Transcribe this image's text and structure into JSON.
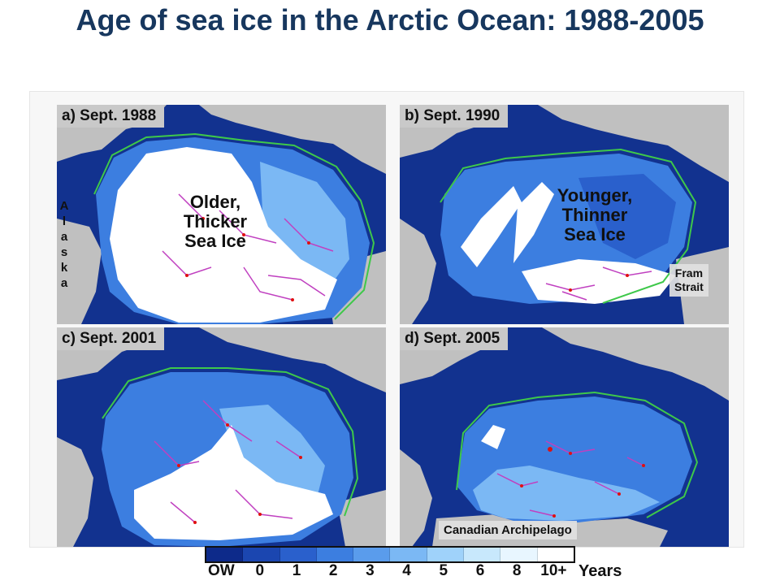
{
  "title": "Age of sea ice in the Arctic Ocean: 1988-2005",
  "panels": [
    {
      "label": "a) Sept. 1988",
      "annotation": "Older,\nThicker\nSea Ice",
      "side_label": "Alaska"
    },
    {
      "label": "b) Sept. 1990",
      "annotation": "Younger,\nThinner\nSea Ice",
      "box_label": "Fram\nStrait"
    },
    {
      "label": "c) Sept. 2001"
    },
    {
      "label": "d) Sept. 2005",
      "box_label": "Canadian Archipelago"
    }
  ],
  "legend": {
    "ticks": [
      "OW",
      "0",
      "1",
      "2",
      "3",
      "4",
      "5",
      "6",
      "8",
      "10+"
    ],
    "unit": "Years",
    "colors": [
      "#0d2a8a",
      "#1b46b0",
      "#2a60cc",
      "#3c7ee0",
      "#5a9cec",
      "#7bb8f4",
      "#9fd2fa",
      "#c8e8fc",
      "#e8f6ff",
      "#ffffff"
    ]
  },
  "map_colors": {
    "land": "#c0c0c0",
    "open_water": "#12328f",
    "ice_edge": "#3ec84a",
    "drift_tracks": "#c040c0",
    "buoys": "#e01010"
  }
}
